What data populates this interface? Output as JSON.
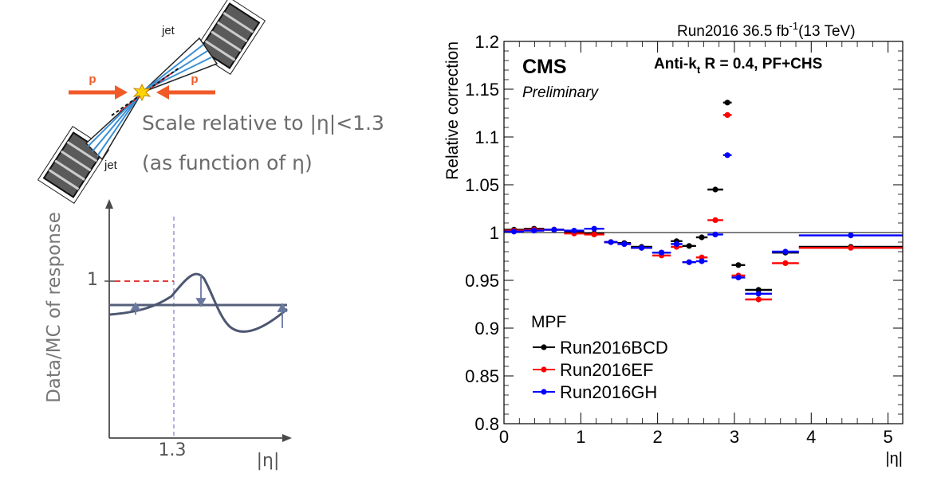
{
  "left_panel": {
    "jet_top": "jet",
    "jet_bottom": "jet",
    "proton_left": "p",
    "proton_right": "p",
    "caption_line1": "Scale relative to |η|<1.3",
    "caption_line2": "(as function of η)",
    "sketch_ylabel": "Data/MC of response",
    "sketch_xlabel": "|η|",
    "sketch_y_tick": "1",
    "sketch_x_tick": "1.3"
  },
  "chart_data": {
    "type": "scatter",
    "header_label": "Run2016  36.5 fb",
    "header_sup": "-1",
    "header_energy": "(13 TeV)",
    "experiment": "CMS",
    "status": "Preliminary",
    "algo_prefix": "Anti-k",
    "algo_sub": "t",
    "algo_suffix": " R = 0.4, PF+CHS",
    "ylabel": "Relative correction",
    "xlabel": "|η|",
    "xlim": [
      0,
      5.191
    ],
    "ylim": [
      0.8,
      1.2
    ],
    "xticks": [
      0,
      1,
      2,
      3,
      4,
      5
    ],
    "yticks": [
      "0.8",
      "0.85",
      "0.9",
      "0.95",
      "1",
      "1.05",
      "1.1",
      "1.15",
      "1.2"
    ],
    "reference_line_y": 1.0,
    "legend_title": "MPF",
    "legend_position": "bottom-left",
    "bins": [
      [
        0,
        0.261
      ],
      [
        0.261,
        0.522
      ],
      [
        0.522,
        0.783
      ],
      [
        0.783,
        1.044
      ],
      [
        1.044,
        1.305
      ],
      [
        1.305,
        1.479
      ],
      [
        1.479,
        1.653
      ],
      [
        1.653,
        1.93
      ],
      [
        1.93,
        2.172
      ],
      [
        2.172,
        2.322
      ],
      [
        2.322,
        2.5
      ],
      [
        2.5,
        2.65
      ],
      [
        2.65,
        2.853
      ],
      [
        2.853,
        2.964
      ],
      [
        2.964,
        3.139
      ],
      [
        3.139,
        3.489
      ],
      [
        3.489,
        3.839
      ],
      [
        3.839,
        5.191
      ]
    ],
    "series": [
      {
        "name": "Run2016BCD",
        "color": "#000000",
        "values": [
          1.003,
          1.004,
          1.003,
          1.001,
          0.999,
          0.99,
          0.989,
          0.985,
          0.979,
          0.991,
          0.986,
          0.995,
          1.045,
          1.136,
          0.966,
          0.94,
          0.979,
          0.985
        ]
      },
      {
        "name": "Run2016EF",
        "color": "#ff0000",
        "values": [
          1.002,
          1.003,
          1.003,
          0.999,
          0.998,
          0.99,
          0.988,
          0.984,
          0.976,
          0.985,
          0.969,
          0.974,
          1.013,
          1.123,
          0.955,
          0.93,
          0.968,
          0.984
        ]
      },
      {
        "name": "Run2016GH",
        "color": "#0000ff",
        "values": [
          1.001,
          1.002,
          1.003,
          1.002,
          1.004,
          0.99,
          0.988,
          0.984,
          0.979,
          0.988,
          0.969,
          0.97,
          0.998,
          1.081,
          0.953,
          0.936,
          0.98,
          0.997
        ]
      }
    ]
  }
}
